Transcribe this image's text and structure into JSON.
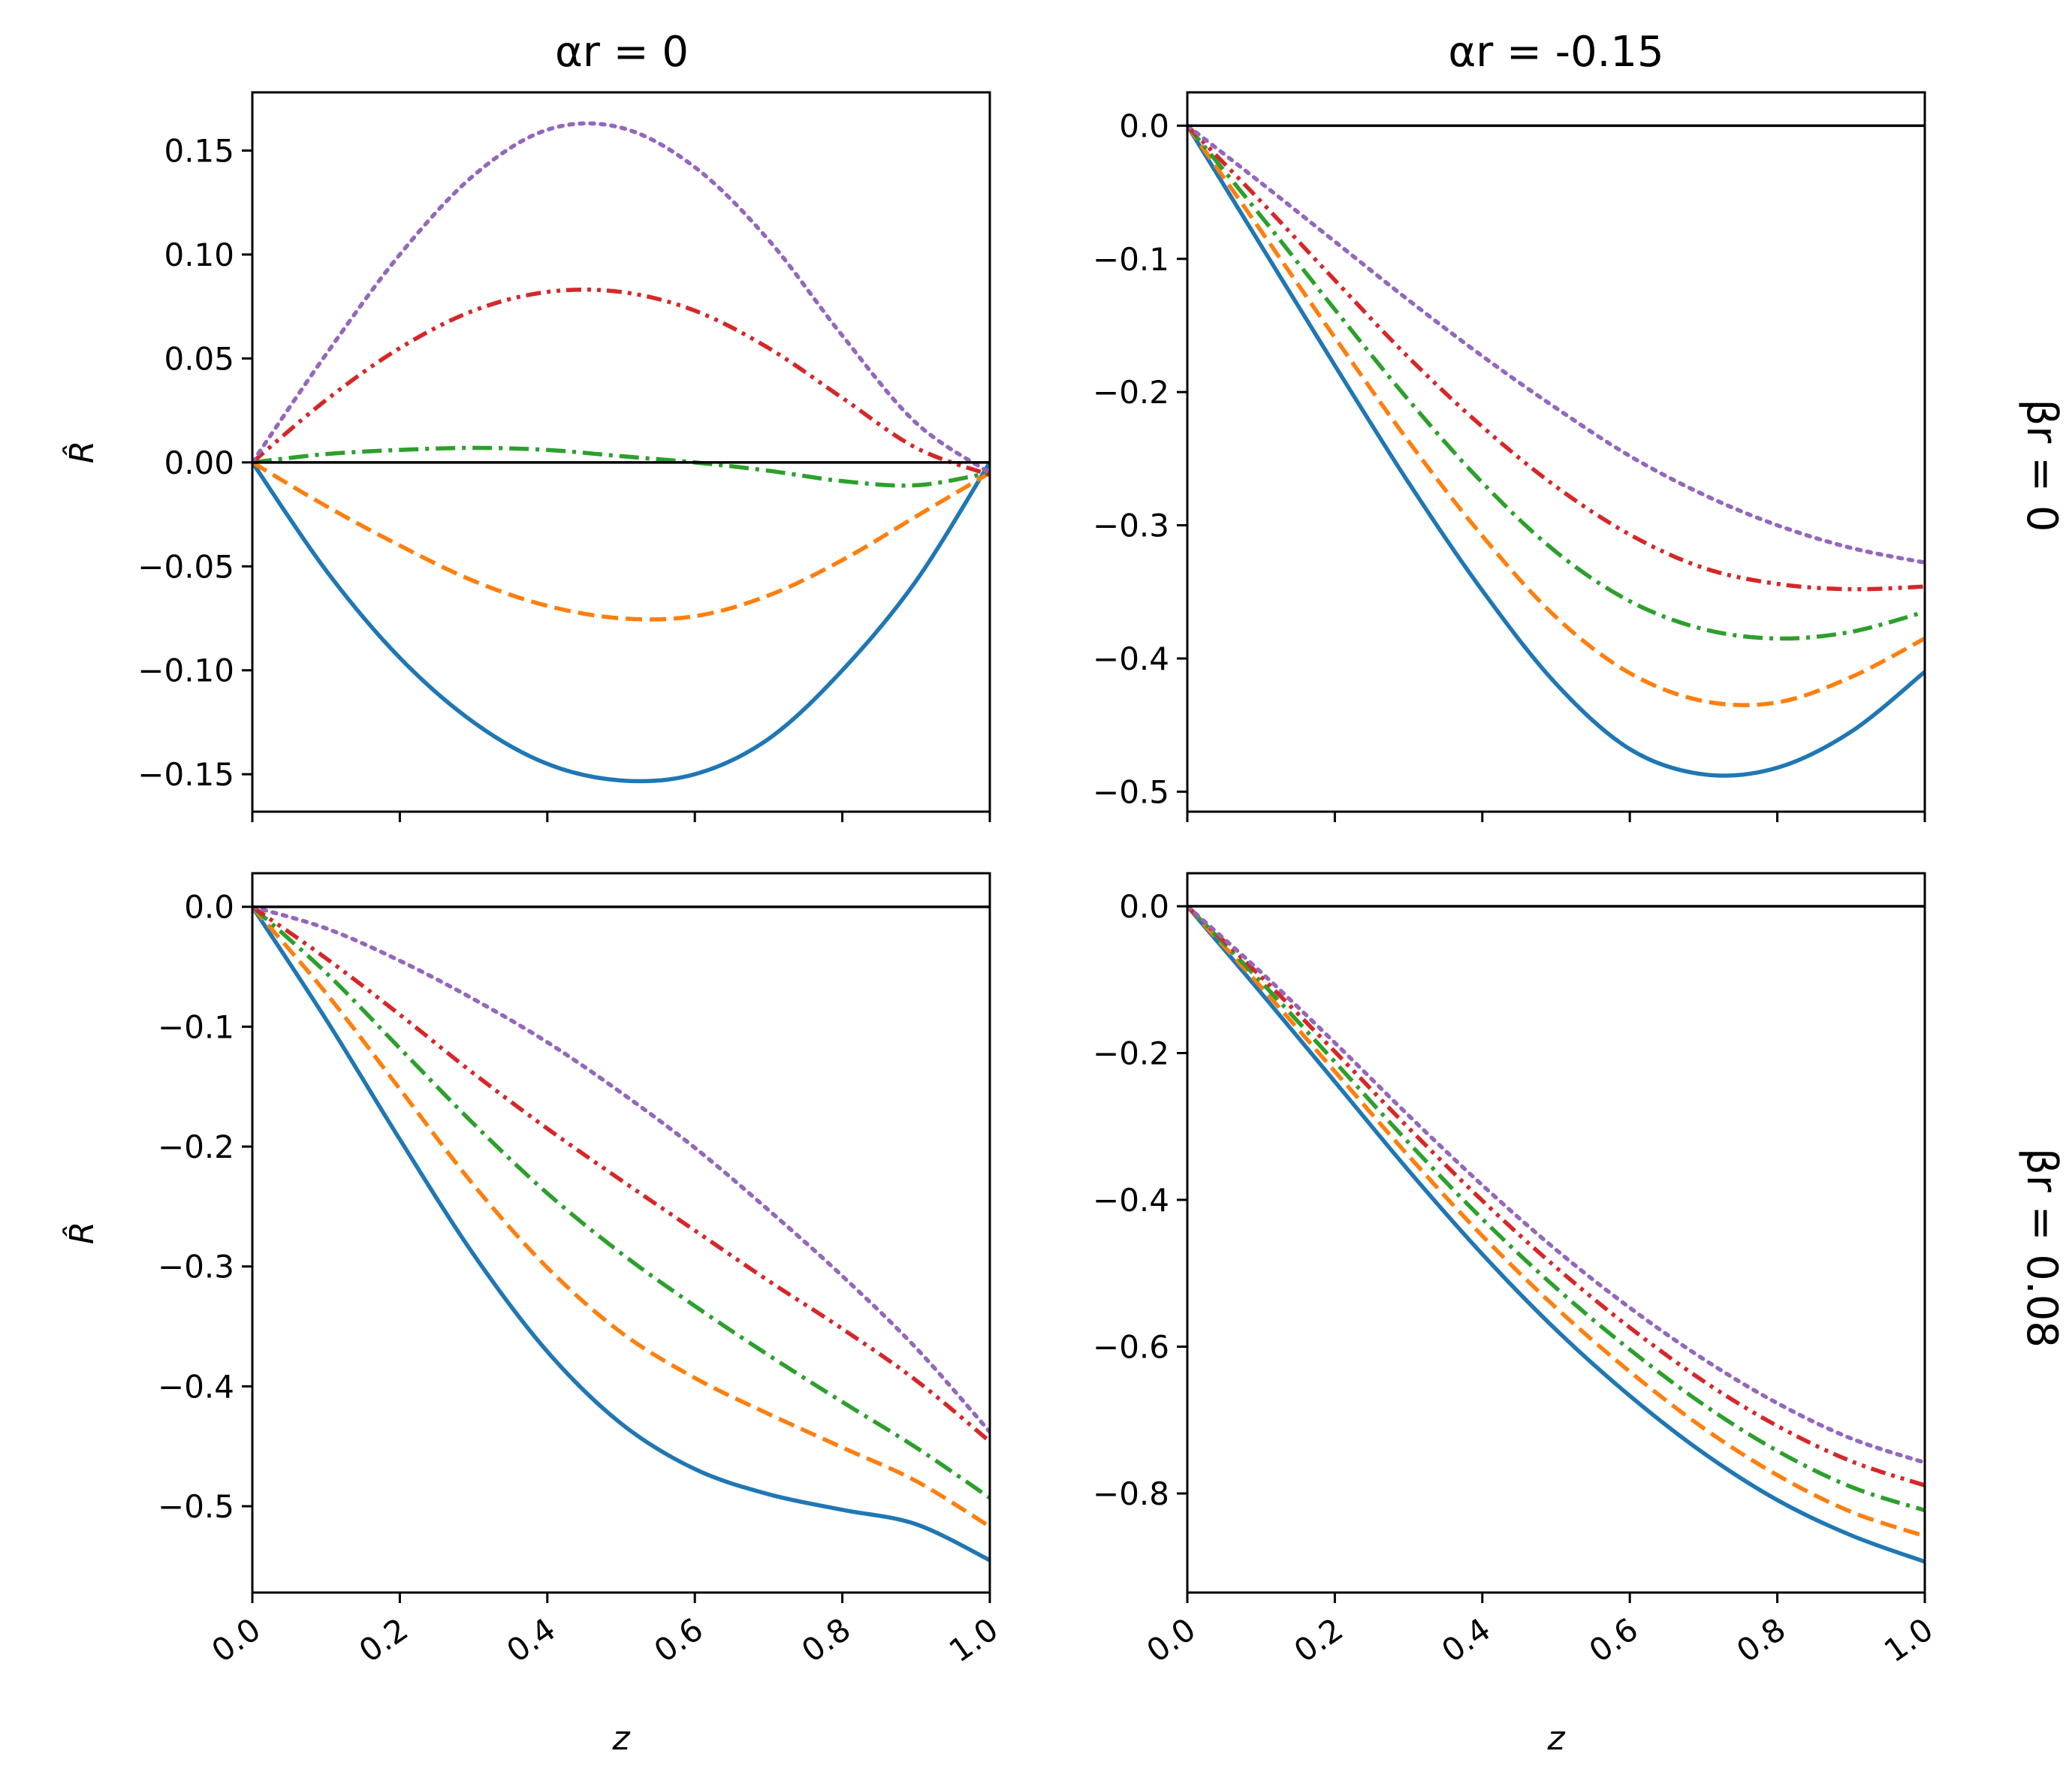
{
  "col_titles": [
    "αr = 0",
    "αr = -0.15"
  ],
  "row_titles": [
    "βr = 0",
    "βr = 0.08"
  ],
  "colors": {
    "series1": "#1f77b4",
    "series2": "#ff7f0e",
    "series3": "#2ca02c",
    "series4": "#d62728",
    "series5": "#9467bd",
    "zero_line": "#000000"
  },
  "chart_data": [
    {
      "type": "line",
      "panel": "top-left",
      "title": "αr = 0",
      "xlabel": "",
      "ylabel": "R̂",
      "xlim": [
        0.0,
        1.0
      ],
      "ylim": [
        -0.168,
        0.178
      ],
      "xticks": [
        "0.0",
        "0.2",
        "0.4",
        "0.6",
        "0.8",
        "1.0"
      ],
      "xticklabels_visible": false,
      "yticks": [
        0.15,
        0.1,
        0.05,
        0.0,
        -0.05,
        -0.1,
        -0.15
      ],
      "yticklabels": [
        "0.15",
        "0.10",
        "0.05",
        "0.00",
        "−0.05",
        "−0.10",
        "−0.15"
      ],
      "x": [
        0.0,
        0.1,
        0.2,
        0.3,
        0.4,
        0.5,
        0.6,
        0.7,
        0.8,
        0.9,
        1.0
      ],
      "series": [
        {
          "style": "solid",
          "color": "#1f77b4",
          "values": [
            0.0,
            -0.052,
            -0.094,
            -0.125,
            -0.145,
            -0.153,
            -0.15,
            -0.133,
            -0.1,
            -0.057,
            0.0
          ]
        },
        {
          "style": "dashed",
          "color": "#ff7f0e",
          "values": [
            0.0,
            -0.021,
            -0.04,
            -0.057,
            -0.069,
            -0.075,
            -0.074,
            -0.064,
            -0.047,
            -0.026,
            -0.005
          ]
        },
        {
          "style": "dashdot",
          "color": "#2ca02c",
          "values": [
            0.0,
            0.004,
            0.006,
            0.007,
            0.006,
            0.003,
            0.0,
            -0.004,
            -0.009,
            -0.011,
            -0.005
          ]
        },
        {
          "style": "dashdotdot",
          "color": "#d62728",
          "values": [
            0.0,
            0.03,
            0.055,
            0.073,
            0.082,
            0.082,
            0.073,
            0.055,
            0.031,
            0.007,
            -0.006
          ]
        },
        {
          "style": "dotted",
          "color": "#9467bd",
          "values": [
            0.0,
            0.052,
            0.1,
            0.138,
            0.16,
            0.161,
            0.142,
            0.107,
            0.061,
            0.019,
            -0.005
          ]
        }
      ],
      "reference_line": 0.0
    },
    {
      "type": "line",
      "panel": "top-right",
      "title": "αr = -0.15",
      "xlabel": "",
      "ylabel": "",
      "xlim": [
        0.0,
        1.0
      ],
      "ylim": [
        -0.515,
        0.025
      ],
      "xticks": [
        "0.0",
        "0.2",
        "0.4",
        "0.6",
        "0.8",
        "1.0"
      ],
      "xticklabels_visible": false,
      "yticks": [
        0.0,
        -0.1,
        -0.2,
        -0.3,
        -0.4,
        -0.5
      ],
      "yticklabels": [
        "0.0",
        "−0.1",
        "−0.2",
        "−0.3",
        "−0.4",
        "−0.5"
      ],
      "x": [
        0.0,
        0.1,
        0.2,
        0.3,
        0.4,
        0.5,
        0.6,
        0.7,
        0.8,
        0.9,
        1.0
      ],
      "series": [
        {
          "style": "solid",
          "color": "#1f77b4",
          "values": [
            0.0,
            -0.09,
            -0.18,
            -0.268,
            -0.349,
            -0.419,
            -0.468,
            -0.487,
            -0.482,
            -0.455,
            -0.41
          ]
        },
        {
          "style": "dashed",
          "color": "#ff7f0e",
          "values": [
            0.0,
            -0.079,
            -0.159,
            -0.237,
            -0.308,
            -0.369,
            -0.411,
            -0.432,
            -0.433,
            -0.414,
            -0.385
          ]
        },
        {
          "style": "dashdot",
          "color": "#2ca02c",
          "values": [
            0.0,
            -0.068,
            -0.138,
            -0.206,
            -0.268,
            -0.32,
            -0.357,
            -0.378,
            -0.385,
            -0.38,
            -0.365
          ]
        },
        {
          "style": "dashdotdot",
          "color": "#d62728",
          "values": [
            0.0,
            -0.057,
            -0.116,
            -0.174,
            -0.226,
            -0.271,
            -0.307,
            -0.332,
            -0.344,
            -0.348,
            -0.346
          ]
        },
        {
          "style": "dotted",
          "color": "#9467bd",
          "values": [
            0.0,
            -0.043,
            -0.087,
            -0.131,
            -0.173,
            -0.212,
            -0.248,
            -0.277,
            -0.3,
            -0.317,
            -0.328
          ]
        }
      ],
      "reference_line": 0.0
    },
    {
      "type": "line",
      "panel": "bottom-left",
      "title": "",
      "xlabel": "z",
      "ylabel": "R̂",
      "xlim": [
        0.0,
        1.0
      ],
      "ylim": [
        -0.572,
        0.028
      ],
      "xticks": [
        "0.0",
        "0.2",
        "0.4",
        "0.6",
        "0.8",
        "1.0"
      ],
      "xticklabels_visible": true,
      "yticks": [
        0.0,
        -0.1,
        -0.2,
        -0.3,
        -0.4,
        -0.5
      ],
      "yticklabels": [
        "0.0",
        "−0.1",
        "−0.2",
        "−0.3",
        "−0.4",
        "−0.5"
      ],
      "x": [
        0.0,
        0.1,
        0.2,
        0.3,
        0.4,
        0.5,
        0.6,
        0.7,
        0.8,
        0.9,
        1.0
      ],
      "series": [
        {
          "style": "solid",
          "color": "#1f77b4",
          "values": [
            0.0,
            -0.094,
            -0.194,
            -0.29,
            -0.371,
            -0.431,
            -0.469,
            -0.49,
            -0.503,
            -0.515,
            -0.545
          ]
        },
        {
          "style": "dashed",
          "color": "#ff7f0e",
          "values": [
            0.0,
            -0.072,
            -0.152,
            -0.232,
            -0.301,
            -0.355,
            -0.393,
            -0.423,
            -0.451,
            -0.479,
            -0.517
          ]
        },
        {
          "style": "dashdot",
          "color": "#2ca02c",
          "values": [
            0.0,
            -0.055,
            -0.118,
            -0.181,
            -0.239,
            -0.289,
            -0.333,
            -0.374,
            -0.413,
            -0.451,
            -0.493
          ]
        },
        {
          "style": "dashdotdot",
          "color": "#d62728",
          "values": [
            0.0,
            -0.043,
            -0.09,
            -0.139,
            -0.185,
            -0.228,
            -0.27,
            -0.312,
            -0.352,
            -0.395,
            -0.446
          ]
        },
        {
          "style": "dotted",
          "color": "#9467bd",
          "values": [
            0.0,
            -0.018,
            -0.045,
            -0.077,
            -0.113,
            -0.155,
            -0.201,
            -0.253,
            -0.308,
            -0.368,
            -0.438
          ]
        }
      ],
      "reference_line": 0.0
    },
    {
      "type": "line",
      "panel": "bottom-right",
      "title": "",
      "xlabel": "z",
      "ylabel": "",
      "xlim": [
        0.0,
        1.0
      ],
      "ylim": [
        -0.935,
        0.045
      ],
      "xticks": [
        "0.0",
        "0.2",
        "0.4",
        "0.6",
        "0.8",
        "1.0"
      ],
      "xticklabels_visible": true,
      "yticks": [
        0.0,
        -0.2,
        -0.4,
        -0.6,
        -0.8
      ],
      "yticklabels": [
        "0.0",
        "−0.2",
        "−0.4",
        "−0.6",
        "−0.8"
      ],
      "x": [
        0.0,
        0.1,
        0.2,
        0.3,
        0.4,
        0.5,
        0.6,
        0.7,
        0.8,
        0.9,
        1.0
      ],
      "series": [
        {
          "style": "solid",
          "color": "#1f77b4",
          "values": [
            0.0,
            -0.118,
            -0.239,
            -0.36,
            -0.474,
            -0.577,
            -0.667,
            -0.745,
            -0.809,
            -0.857,
            -0.893
          ]
        },
        {
          "style": "dashed",
          "color": "#ff7f0e",
          "values": [
            0.0,
            -0.11,
            -0.225,
            -0.34,
            -0.449,
            -0.547,
            -0.634,
            -0.711,
            -0.775,
            -0.825,
            -0.858
          ]
        },
        {
          "style": "dashdot",
          "color": "#2ca02c",
          "values": [
            0.0,
            -0.103,
            -0.212,
            -0.322,
            -0.426,
            -0.52,
            -0.604,
            -0.679,
            -0.742,
            -0.791,
            -0.823
          ]
        },
        {
          "style": "dashdotdot",
          "color": "#d62728",
          "values": [
            0.0,
            -0.096,
            -0.198,
            -0.302,
            -0.401,
            -0.492,
            -0.574,
            -0.647,
            -0.708,
            -0.756,
            -0.789
          ]
        },
        {
          "style": "dotted",
          "color": "#9467bd",
          "values": [
            0.0,
            -0.09,
            -0.186,
            -0.285,
            -0.38,
            -0.468,
            -0.547,
            -0.617,
            -0.677,
            -0.725,
            -0.758
          ]
        }
      ],
      "reference_line": 0.0
    }
  ]
}
